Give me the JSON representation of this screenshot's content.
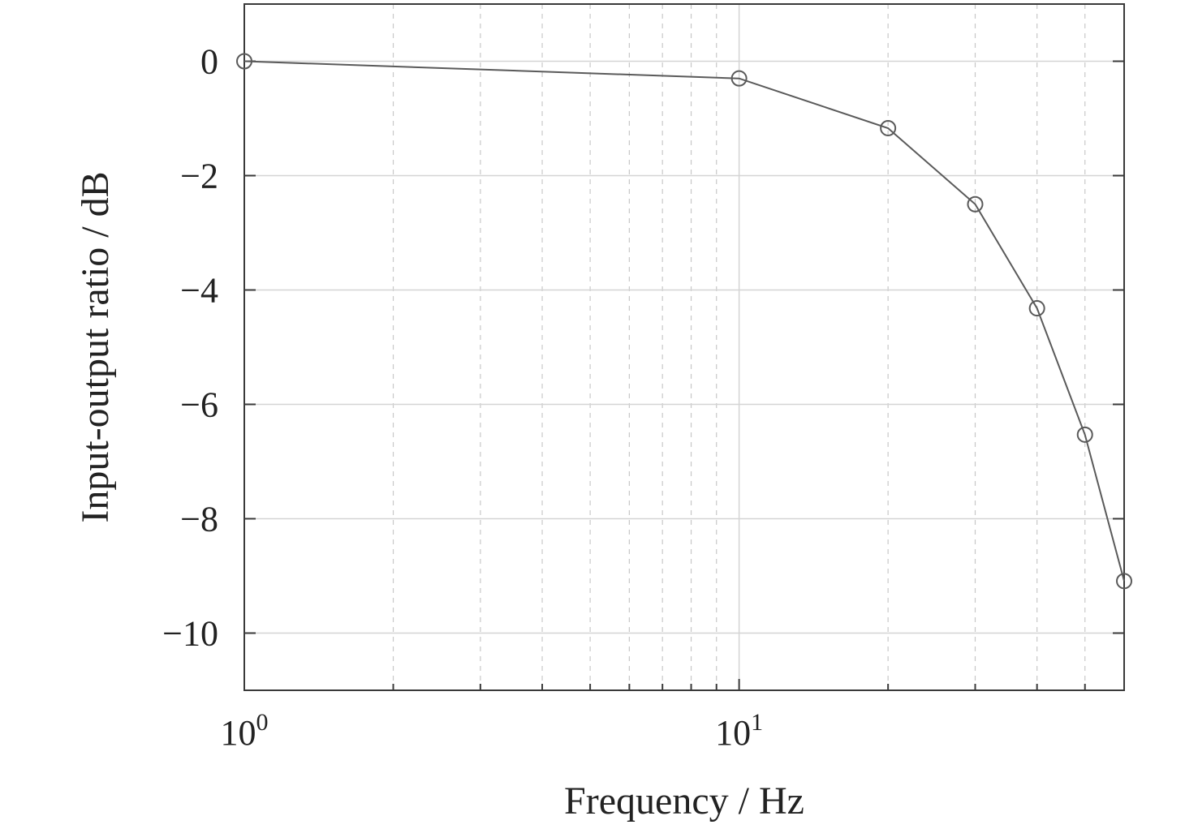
{
  "chart_data": {
    "type": "line",
    "title": "",
    "xlabel": "Frequency / Hz",
    "ylabel": "Input-output ratio / dB",
    "xscale": "log",
    "xlim": [
      1,
      60
    ],
    "ylim": [
      -11,
      1
    ],
    "x_ticks": [
      {
        "value": 1,
        "base": "10",
        "exp": "0"
      },
      {
        "value": 10,
        "base": "10",
        "exp": "1"
      }
    ],
    "y_ticks": [
      {
        "value": 0,
        "label": "0"
      },
      {
        "value": -2,
        "label": "−2"
      },
      {
        "value": -4,
        "label": "−4"
      },
      {
        "value": -6,
        "label": "−6"
      },
      {
        "value": -8,
        "label": "−8"
      },
      {
        "value": -10,
        "label": "−10"
      }
    ],
    "grid": true,
    "marker": "circle",
    "series": [
      {
        "x": [
          1,
          10,
          20,
          30,
          40,
          50,
          60
        ],
        "y": [
          0,
          -0.3,
          -1.17,
          -2.5,
          -4.32,
          -6.53,
          -9.09
        ]
      }
    ],
    "colors": {
      "line": "#5a5a5a",
      "frame": "#3a3a3a",
      "grid": "#d4d4d4"
    }
  }
}
